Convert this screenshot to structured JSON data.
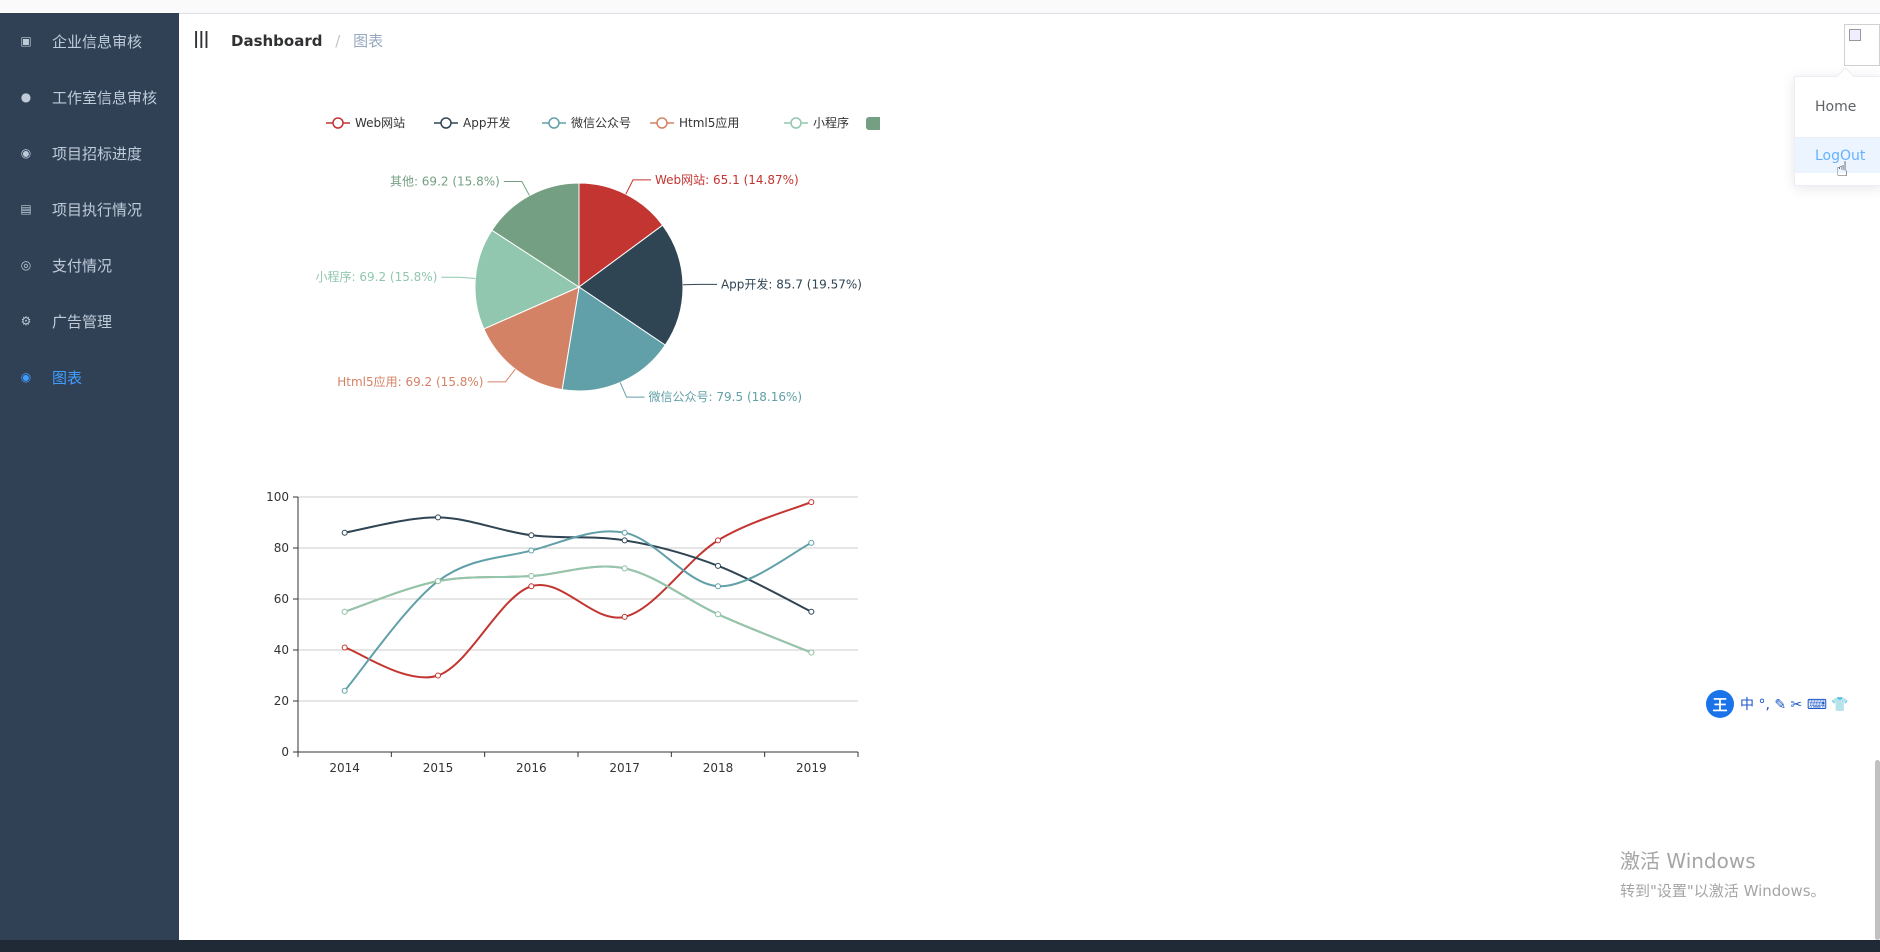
{
  "sidebar": {
    "items": [
      {
        "label": "企业信息审核",
        "icon": "building-icon",
        "glyph": "▣"
      },
      {
        "label": "工作室信息审核",
        "icon": "user-icon",
        "glyph": "●"
      },
      {
        "label": "项目招标进度",
        "icon": "target-icon",
        "glyph": "◉"
      },
      {
        "label": "项目执行情况",
        "icon": "calendar-icon",
        "glyph": "▤"
      },
      {
        "label": "支付情况",
        "icon": "coins-icon",
        "glyph": "◎"
      },
      {
        "label": "广告管理",
        "icon": "gear-icon",
        "glyph": "⚙"
      },
      {
        "label": "图表",
        "icon": "chart-icon",
        "glyph": "◉"
      }
    ],
    "active_index": 6
  },
  "navbar": {
    "breadcrumb": [
      "Dashboard",
      "图表"
    ],
    "separator": "/"
  },
  "dropdown": {
    "items": [
      "Home",
      "LogOut"
    ]
  },
  "ime": {
    "logo": "王",
    "glyphs": "中 °, ✎ ✂ ⌨ 👕"
  },
  "watermark": {
    "title": "激活 Windows",
    "subtitle": "转到\"设置\"以激活 Windows。"
  },
  "colors": {
    "sidebar": "#304156",
    "active": "#409eff",
    "web": "#c23531",
    "app": "#2f4554",
    "wechat": "#61a0a8",
    "html5": "#d48265",
    "mini": "#91c7ae",
    "other": "#749f83"
  },
  "chart_data": [
    {
      "type": "pie",
      "legend": [
        "Web网站",
        "App开发",
        "微信公众号",
        "Html5应用",
        "小程序",
        "其他"
      ],
      "legend_position": "top",
      "slices": [
        {
          "name": "Web网站",
          "value": 65.1,
          "label": "Web网站: 65.1 (14.87%)"
        },
        {
          "name": "App开发",
          "value": 85.7,
          "label": "App开发: 85.7 (19.57%)"
        },
        {
          "name": "微信公众号",
          "value": 79.5,
          "label": "微信公众号: 79.5 (18.16%)"
        },
        {
          "name": "Html5应用",
          "value": 69.2,
          "label": "Html5应用: 69.2 (15.8%)"
        },
        {
          "name": "小程序",
          "value": 69.2,
          "label": "小程序: 69.2 (15.8%)"
        },
        {
          "name": "其他",
          "value": 69.2,
          "label": "其他: 69.2 (15.8%)"
        }
      ]
    },
    {
      "type": "line",
      "smooth": true,
      "categories": [
        "2014",
        "2015",
        "2016",
        "2017",
        "2018",
        "2019"
      ],
      "ylim": [
        0,
        100
      ],
      "yticks": [
        "0",
        "20",
        "40",
        "60",
        "80",
        "100"
      ],
      "grid": true,
      "series": [
        {
          "name": "Web网站",
          "values": [
            41,
            30,
            65,
            53,
            83,
            98
          ]
        },
        {
          "name": "App开发",
          "values": [
            86,
            92,
            85,
            83,
            73,
            55
          ]
        },
        {
          "name": "微信公众号",
          "values": [
            24,
            67,
            79,
            86,
            65,
            82
          ]
        },
        {
          "name": "Html5应用",
          "values": [
            55,
            67,
            69,
            72,
            54,
            39
          ]
        },
        {
          "name": "小程序",
          "values": [
            55,
            67,
            69,
            72,
            54,
            39
          ]
        }
      ]
    }
  ]
}
